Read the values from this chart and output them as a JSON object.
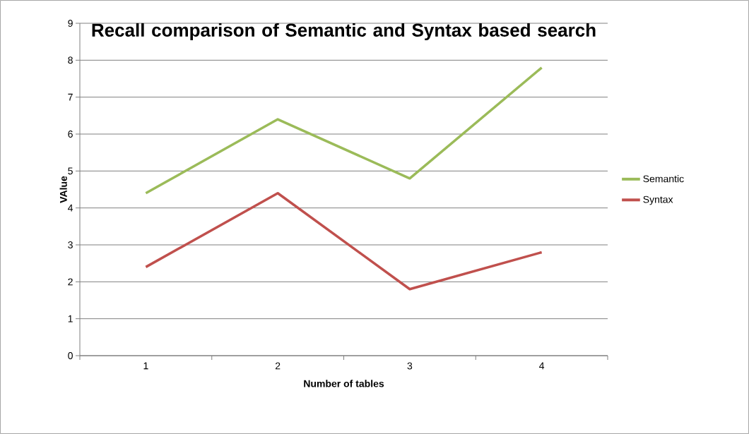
{
  "chart_data": {
    "type": "line",
    "title": "Recall comparison of Semantic and Syntax based search",
    "xlabel": "Number of tables",
    "ylabel": "VAlue",
    "categories": [
      "1",
      "2",
      "3",
      "4"
    ],
    "series": [
      {
        "name": "Semantic",
        "color": "#9bbb59",
        "values": [
          4.4,
          6.4,
          4.8,
          7.8
        ]
      },
      {
        "name": "Syntax",
        "color": "#c0504d",
        "values": [
          2.4,
          4.4,
          1.8,
          2.8
        ]
      }
    ],
    "ylim": [
      0,
      9
    ],
    "yticks": [
      0,
      1,
      2,
      3,
      4,
      5,
      6,
      7,
      8,
      9
    ],
    "grid": "y",
    "legend": "right",
    "marker": "none",
    "line_style": "solid"
  }
}
